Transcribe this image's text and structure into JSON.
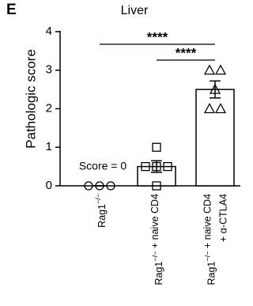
{
  "chart_data": {
    "type": "bar",
    "panel_label": "E",
    "title": "Liver",
    "y_label": "Pathologic score",
    "categories": [
      "Rag1−/−",
      "Rag1−/− + naive CD4",
      "Rag1−/− + naive CD4\n+ α-CTLA4"
    ],
    "values": [
      0,
      0.5,
      2.5
    ],
    "errors": [
      0,
      0.15,
      0.22
    ],
    "points": [
      [
        0,
        0,
        0
      ],
      [
        1,
        0.5,
        0.5,
        0.5,
        0
      ],
      [
        3,
        3,
        2.5,
        2,
        2
      ]
    ],
    "markers": [
      "circle",
      "square",
      "triangle"
    ],
    "color": "#000000",
    "ylim": [
      0,
      4
    ],
    "yticks": [
      0,
      1,
      2,
      3,
      4
    ],
    "annotation": "Score = 0",
    "comparisons": [
      {
        "label": "****",
        "groups": [
          0,
          2
        ]
      },
      {
        "label": "****",
        "groups": [
          1,
          2
        ]
      }
    ]
  }
}
